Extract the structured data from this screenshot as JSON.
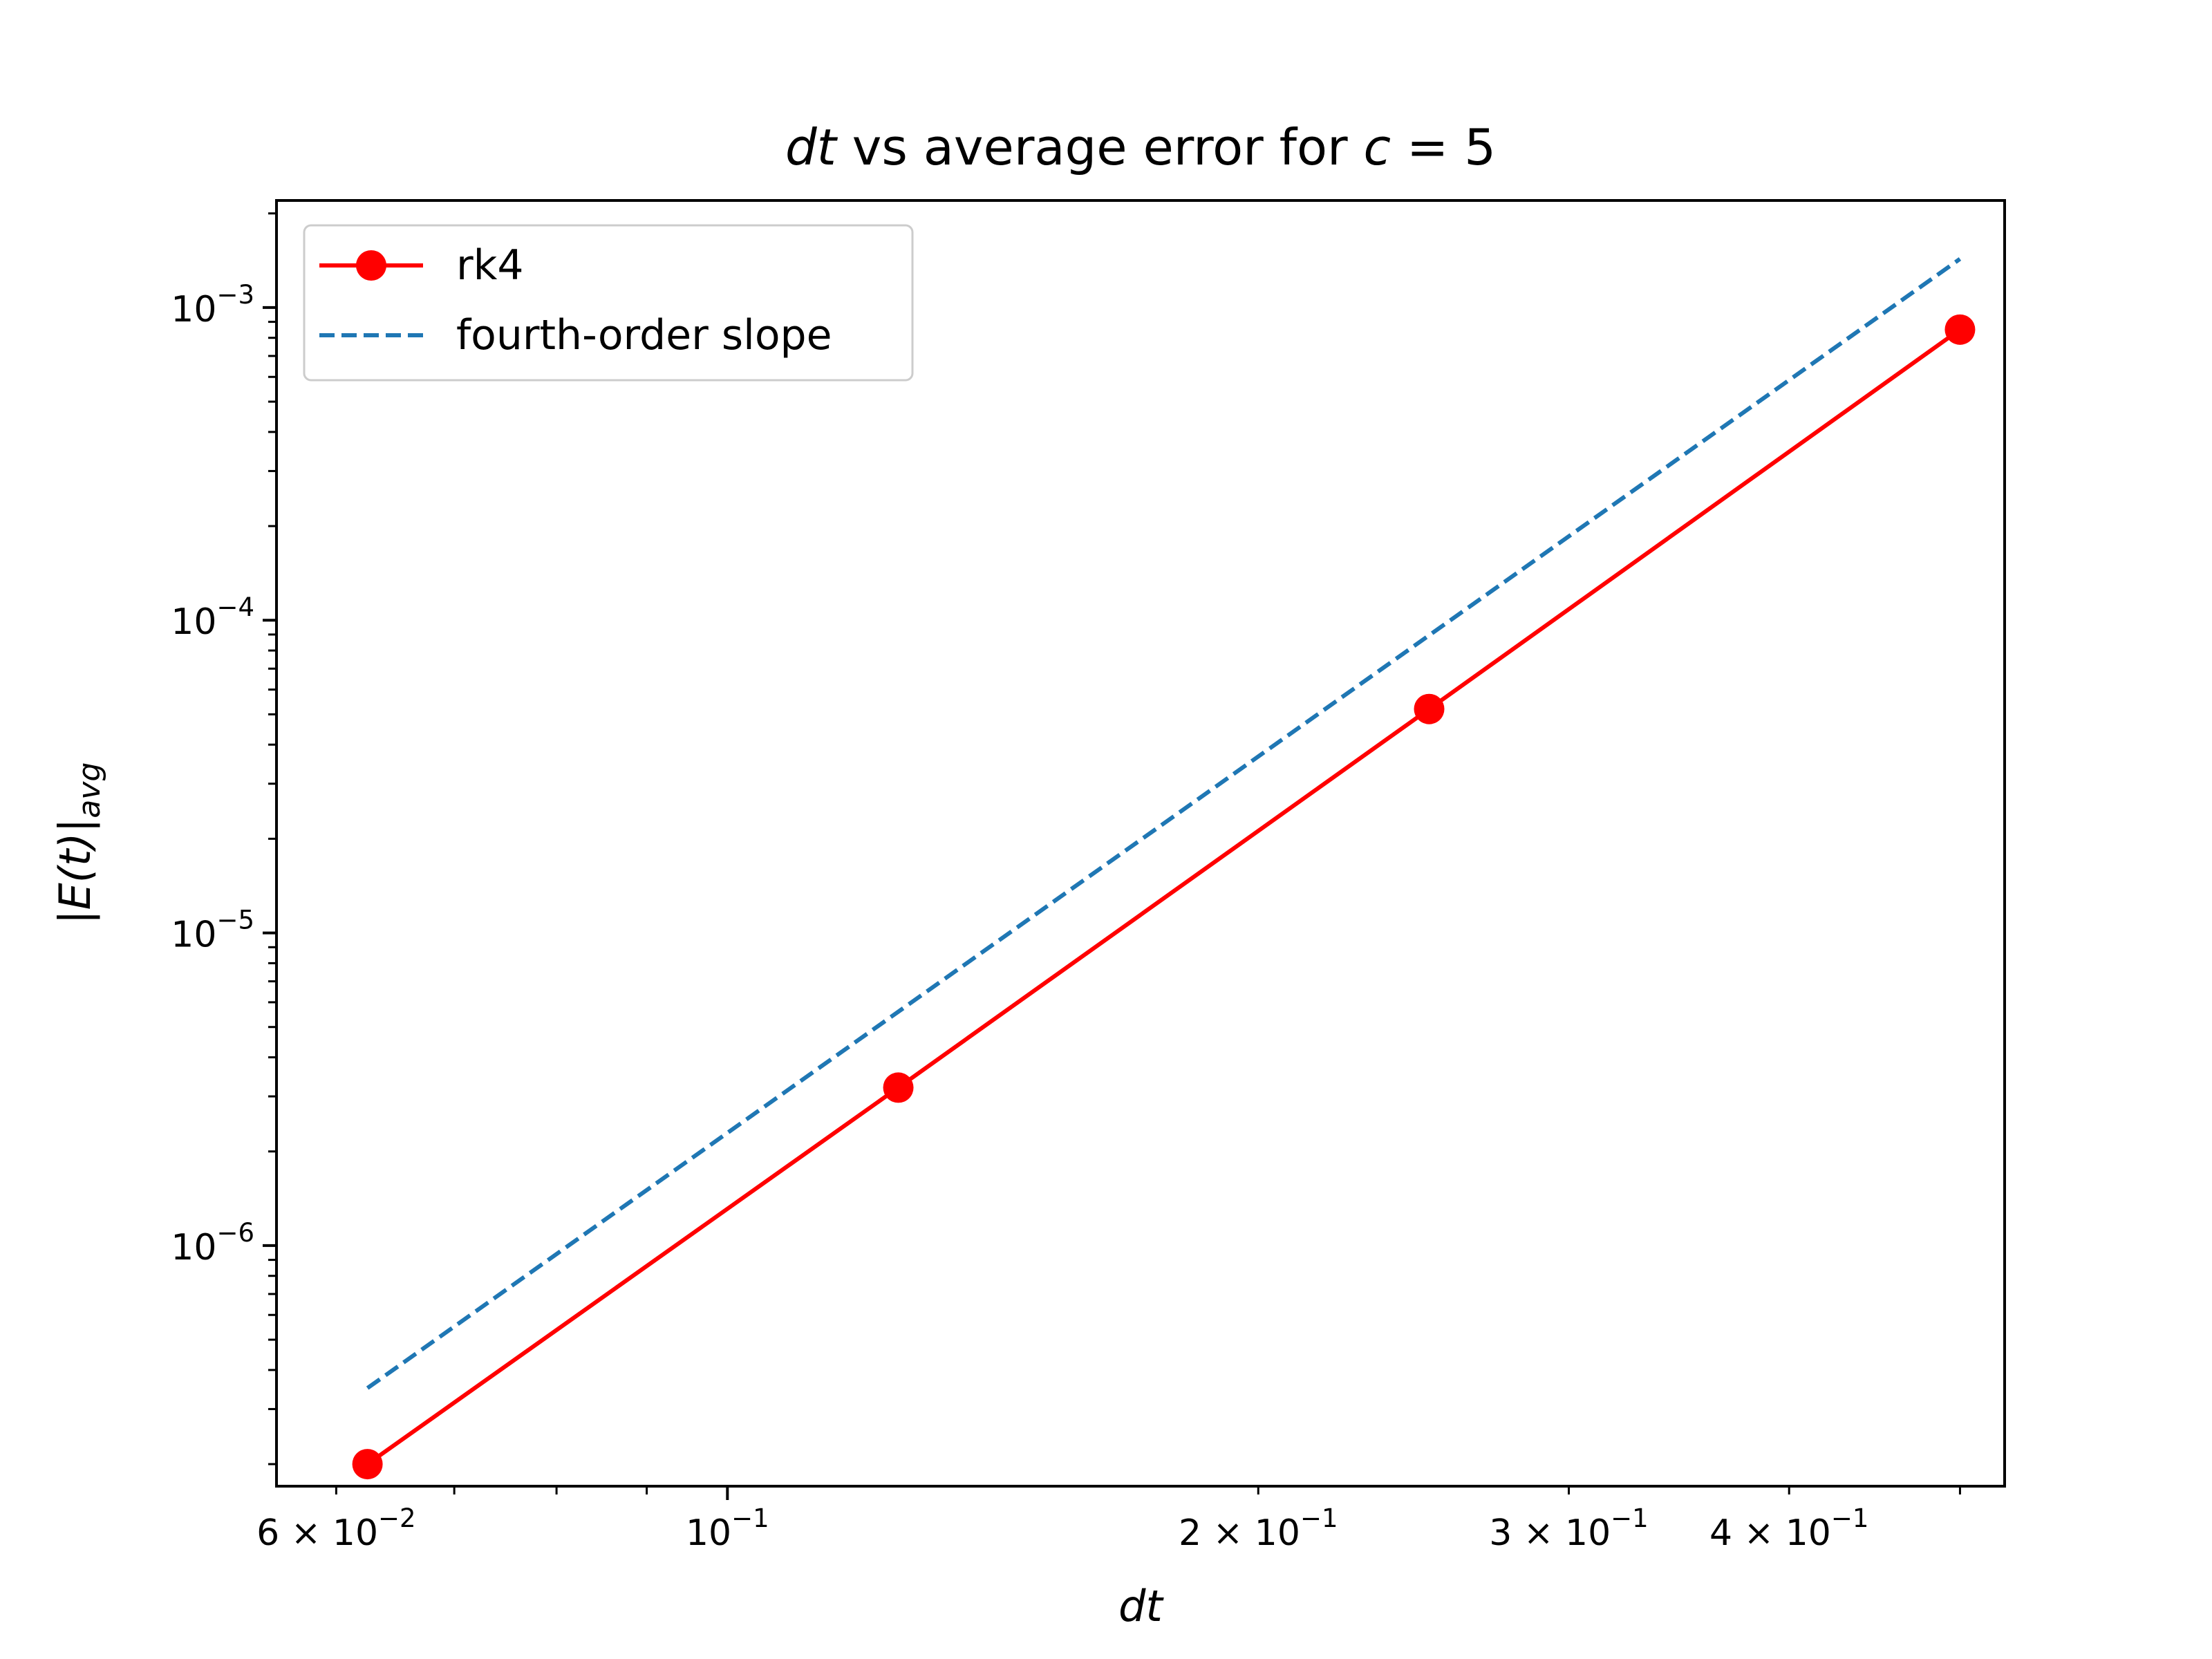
{
  "chart_data": {
    "type": "line",
    "title": {
      "italic": "dt",
      "rest": " vs average error for ",
      "var": "c",
      "eq": " = 5"
    },
    "xlabel": "dt",
    "ylabel": {
      "main": "|E(t)|",
      "sub": "avg"
    },
    "xscale": "log",
    "yscale": "log",
    "xlim": [
      0.0555,
      0.53
    ],
    "ylim": [
      1.7e-07,
      0.0022
    ],
    "xticks_major": [
      {
        "value": 0.1,
        "mant": "10",
        "exp": "−1"
      }
    ],
    "xticks_labeled_minor": [
      {
        "value": 0.06,
        "mant": "6 × 10",
        "exp": "−2"
      },
      {
        "value": 0.2,
        "mant": "2 × 10",
        "exp": "−1"
      },
      {
        "value": 0.3,
        "mant": "3 × 10",
        "exp": "−1"
      },
      {
        "value": 0.4,
        "mant": "4 × 10",
        "exp": "−1"
      }
    ],
    "xticks_minor_unlabeled": [
      0.07,
      0.08,
      0.09,
      0.5
    ],
    "yticks_major": [
      {
        "value": 1e-06,
        "mant": "10",
        "exp": "−6"
      },
      {
        "value": 1e-05,
        "mant": "10",
        "exp": "−5"
      },
      {
        "value": 0.0001,
        "mant": "10",
        "exp": "−4"
      },
      {
        "value": 0.001,
        "mant": "10",
        "exp": "−3"
      }
    ],
    "grid": false,
    "legend_position": "top-left",
    "series": [
      {
        "name": "rk4",
        "color": "#ff0000",
        "style": "solid",
        "marker": "circle",
        "x": [
          0.0625,
          0.125,
          0.25,
          0.5
        ],
        "y": [
          2e-07,
          3.2e-06,
          5.2e-05,
          0.00085
        ]
      },
      {
        "name": "fourth-order slope",
        "color": "#1f77b4",
        "style": "dashed",
        "marker": "none",
        "x": [
          0.0625,
          0.5
        ],
        "y": [
          3.5e-07,
          0.00143
        ]
      }
    ]
  }
}
